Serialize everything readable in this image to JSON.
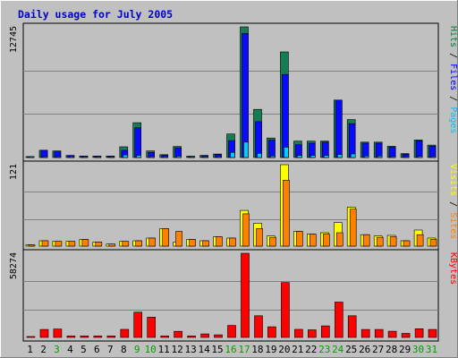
{
  "chart_data": {
    "type": "bar",
    "title": "Daily usage for July 2005",
    "days": [
      "1",
      "2",
      "3",
      "4",
      "5",
      "6",
      "7",
      "8",
      "9",
      "10",
      "11",
      "12",
      "13",
      "14",
      "15",
      "16",
      "17",
      "18",
      "19",
      "20",
      "21",
      "22",
      "23",
      "24",
      "25",
      "26",
      "27",
      "28",
      "29",
      "30",
      "31"
    ],
    "weekend_days": [
      "3",
      "9",
      "10",
      "16",
      "17",
      "23",
      "24",
      "30",
      "31"
    ],
    "panels": [
      {
        "name": "hits-files-pages",
        "max_label": "12745",
        "ymax": 12745,
        "legend": [
          {
            "text": "Pages",
            "color": "#00c0ff"
          },
          {
            "text": " / ",
            "color": "#000000"
          },
          {
            "text": "Files",
            "color": "#0000ff"
          },
          {
            "text": " / ",
            "color": "#000000"
          },
          {
            "text": "Hits",
            "color": "#008040"
          }
        ],
        "series": [
          {
            "name": "Hits",
            "color": "#157c54",
            "values": [
              0,
              710,
              640,
              200,
              150,
              150,
              150,
              1050,
              3400,
              650,
              280,
              1070,
              130,
              210,
              340,
              2300,
              12745,
              4700,
              1900,
              10300,
              1600,
              1600,
              1600,
              5600,
              3700,
              1500,
              1500,
              1100,
              380,
              1710,
              1210
            ]
          },
          {
            "name": "Files",
            "color": "#0a0aff",
            "values": [
              0,
              710,
              640,
              200,
              150,
              150,
              150,
              700,
              2900,
              500,
              200,
              950,
              100,
              180,
              300,
              1650,
              12100,
              3500,
              1700,
              8100,
              1250,
              1400,
              1500,
              5600,
              3300,
              1400,
              1400,
              1000,
              330,
              1620,
              1100
            ]
          },
          {
            "name": "Pages",
            "color": "#00ccff",
            "values": [
              0,
              80,
              80,
              40,
              30,
              30,
              30,
              250,
              200,
              100,
              60,
              140,
              30,
              30,
              80,
              500,
              1500,
              400,
              150,
              1000,
              200,
              200,
              200,
              300,
              350,
              150,
              150,
              100,
              50,
              120,
              100
            ]
          }
        ]
      },
      {
        "name": "sites-visits",
        "max_label": "121",
        "ymax": 121,
        "legend": [
          {
            "text": "Sites",
            "color": "#ff8000"
          },
          {
            "text": " / ",
            "color": "#000000"
          },
          {
            "text": "Visits",
            "color": "#ffff00"
          }
        ],
        "series": [
          {
            "name": "Visits",
            "color": "#ffff00",
            "values": [
              2,
              8,
              7,
              7,
              10,
              6,
              3,
              7,
              8,
              12,
              26,
              6,
              10,
              8,
              14,
              12,
              53,
              34,
              15,
              121,
              22,
              18,
              20,
              35,
              58,
              17,
              15,
              16,
              8,
              24,
              12
            ]
          },
          {
            "name": "Sites",
            "color": "#ff8000",
            "values": [
              2,
              8,
              7,
              7,
              10,
              6,
              3,
              7,
              8,
              12,
              26,
              22,
              10,
              8,
              14,
              12,
              48,
              26,
              13,
              98,
              22,
              18,
              18,
              20,
              55,
              17,
              13,
              14,
              8,
              17,
              10
            ]
          }
        ]
      },
      {
        "name": "kbytes",
        "max_label": "58274",
        "ymax": 58274,
        "legend": [
          {
            "text": "KBytes",
            "color": "#ff0000"
          }
        ],
        "series": [
          {
            "name": "KBytes",
            "color": "#ff0000",
            "values": [
              300,
              5500,
              5800,
              1000,
              1000,
              1000,
              1000,
              5600,
              17500,
              14000,
              1000,
              4200,
              1000,
              2400,
              1800,
              8300,
              58274,
              15000,
              7400,
              38000,
              5600,
              5300,
              8000,
              24500,
              15000,
              5500,
              5500,
              4300,
              2800,
              6000,
              5500
            ]
          }
        ]
      }
    ]
  }
}
